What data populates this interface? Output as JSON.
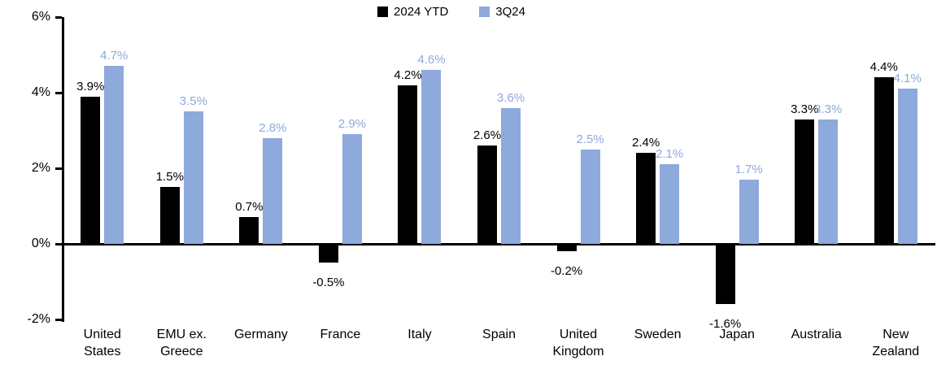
{
  "chart_data": {
    "type": "bar",
    "title": "",
    "categories": [
      "United\nStates",
      "EMU ex.\nGreece",
      "Germany",
      "France",
      "Italy",
      "Spain",
      "United\nKingdom",
      "Sweden",
      "Japan",
      "Australia",
      "New\nZealand"
    ],
    "series": [
      {
        "name": "2024 YTD",
        "color": "#000000",
        "label_color": "#000000",
        "values": [
          3.9,
          1.5,
          0.7,
          -0.5,
          4.2,
          2.6,
          -0.2,
          2.4,
          -1.6,
          3.3,
          4.4
        ],
        "labels": [
          "3.9%",
          "1.5%",
          "0.7%",
          "-0.5%",
          "4.2%",
          "2.6%",
          "-0.2%",
          "2.4%",
          "-1.6%",
          "3.3%",
          "4.4%"
        ]
      },
      {
        "name": "3Q24",
        "color": "#8EA9DB",
        "label_color": "#8EA9DB",
        "values": [
          4.7,
          3.5,
          2.8,
          2.9,
          4.6,
          3.6,
          2.5,
          2.1,
          1.7,
          3.3,
          4.1
        ],
        "labels": [
          "4.7%",
          "3.5%",
          "2.8%",
          "2.9%",
          "4.6%",
          "3.6%",
          "2.5%",
          "2.1%",
          "1.7%",
          "3.3%",
          "4.1%"
        ]
      }
    ],
    "ylim": [
      -2,
      6
    ],
    "yticks": [
      {
        "label": "6%",
        "value": 6
      },
      {
        "label": "4%",
        "value": 4
      },
      {
        "label": "2%",
        "value": 2
      },
      {
        "label": "0%",
        "value": 0
      },
      {
        "label": "-2%",
        "value": -2
      }
    ],
    "legend_position": "top-center",
    "grid": false,
    "xlabel": "",
    "ylabel": ""
  },
  "colors": {
    "axis": "#000000",
    "background": "#FFFFFF",
    "series_2024ytd": "#000000",
    "series_3q24": "#8EA9DB"
  }
}
